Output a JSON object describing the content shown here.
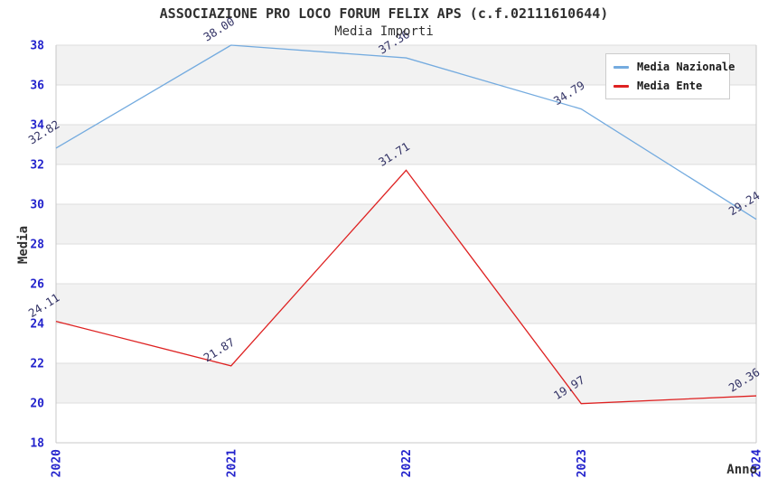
{
  "title": "ASSOCIAZIONE PRO LOCO FORUM FELIX APS (c.f.02111610644)",
  "subtitle": "Media Importi",
  "chart_data": {
    "type": "line",
    "x": [
      "2020",
      "2021",
      "2022",
      "2023",
      "2024"
    ],
    "xlabel": "Anno",
    "ylabel": "Media",
    "ylim": [
      18,
      38
    ],
    "ytick_step": 2,
    "yticks": [
      18,
      20,
      22,
      24,
      26,
      28,
      30,
      32,
      34,
      36,
      38
    ],
    "grid": "horizontal-bands-alternating",
    "legend_position": "top-right",
    "data_labels_shown": true,
    "data_label_format": "0.00",
    "series": [
      {
        "name": "Media Nazionale",
        "color": "#74abdf",
        "values": [
          32.82,
          38.0,
          37.36,
          34.79,
          29.24
        ]
      },
      {
        "name": "Media Ente",
        "color": "#de2121",
        "values": [
          24.11,
          21.87,
          31.71,
          19.97,
          20.36
        ]
      }
    ]
  },
  "colors": {
    "band_gray": "#f2f2f2",
    "band_white": "#ffffff",
    "gridline": "#dddddd",
    "frame": "#c8c8c8",
    "tick_label": "#2323cc",
    "data_label": "#333366",
    "text": "#303030"
  }
}
